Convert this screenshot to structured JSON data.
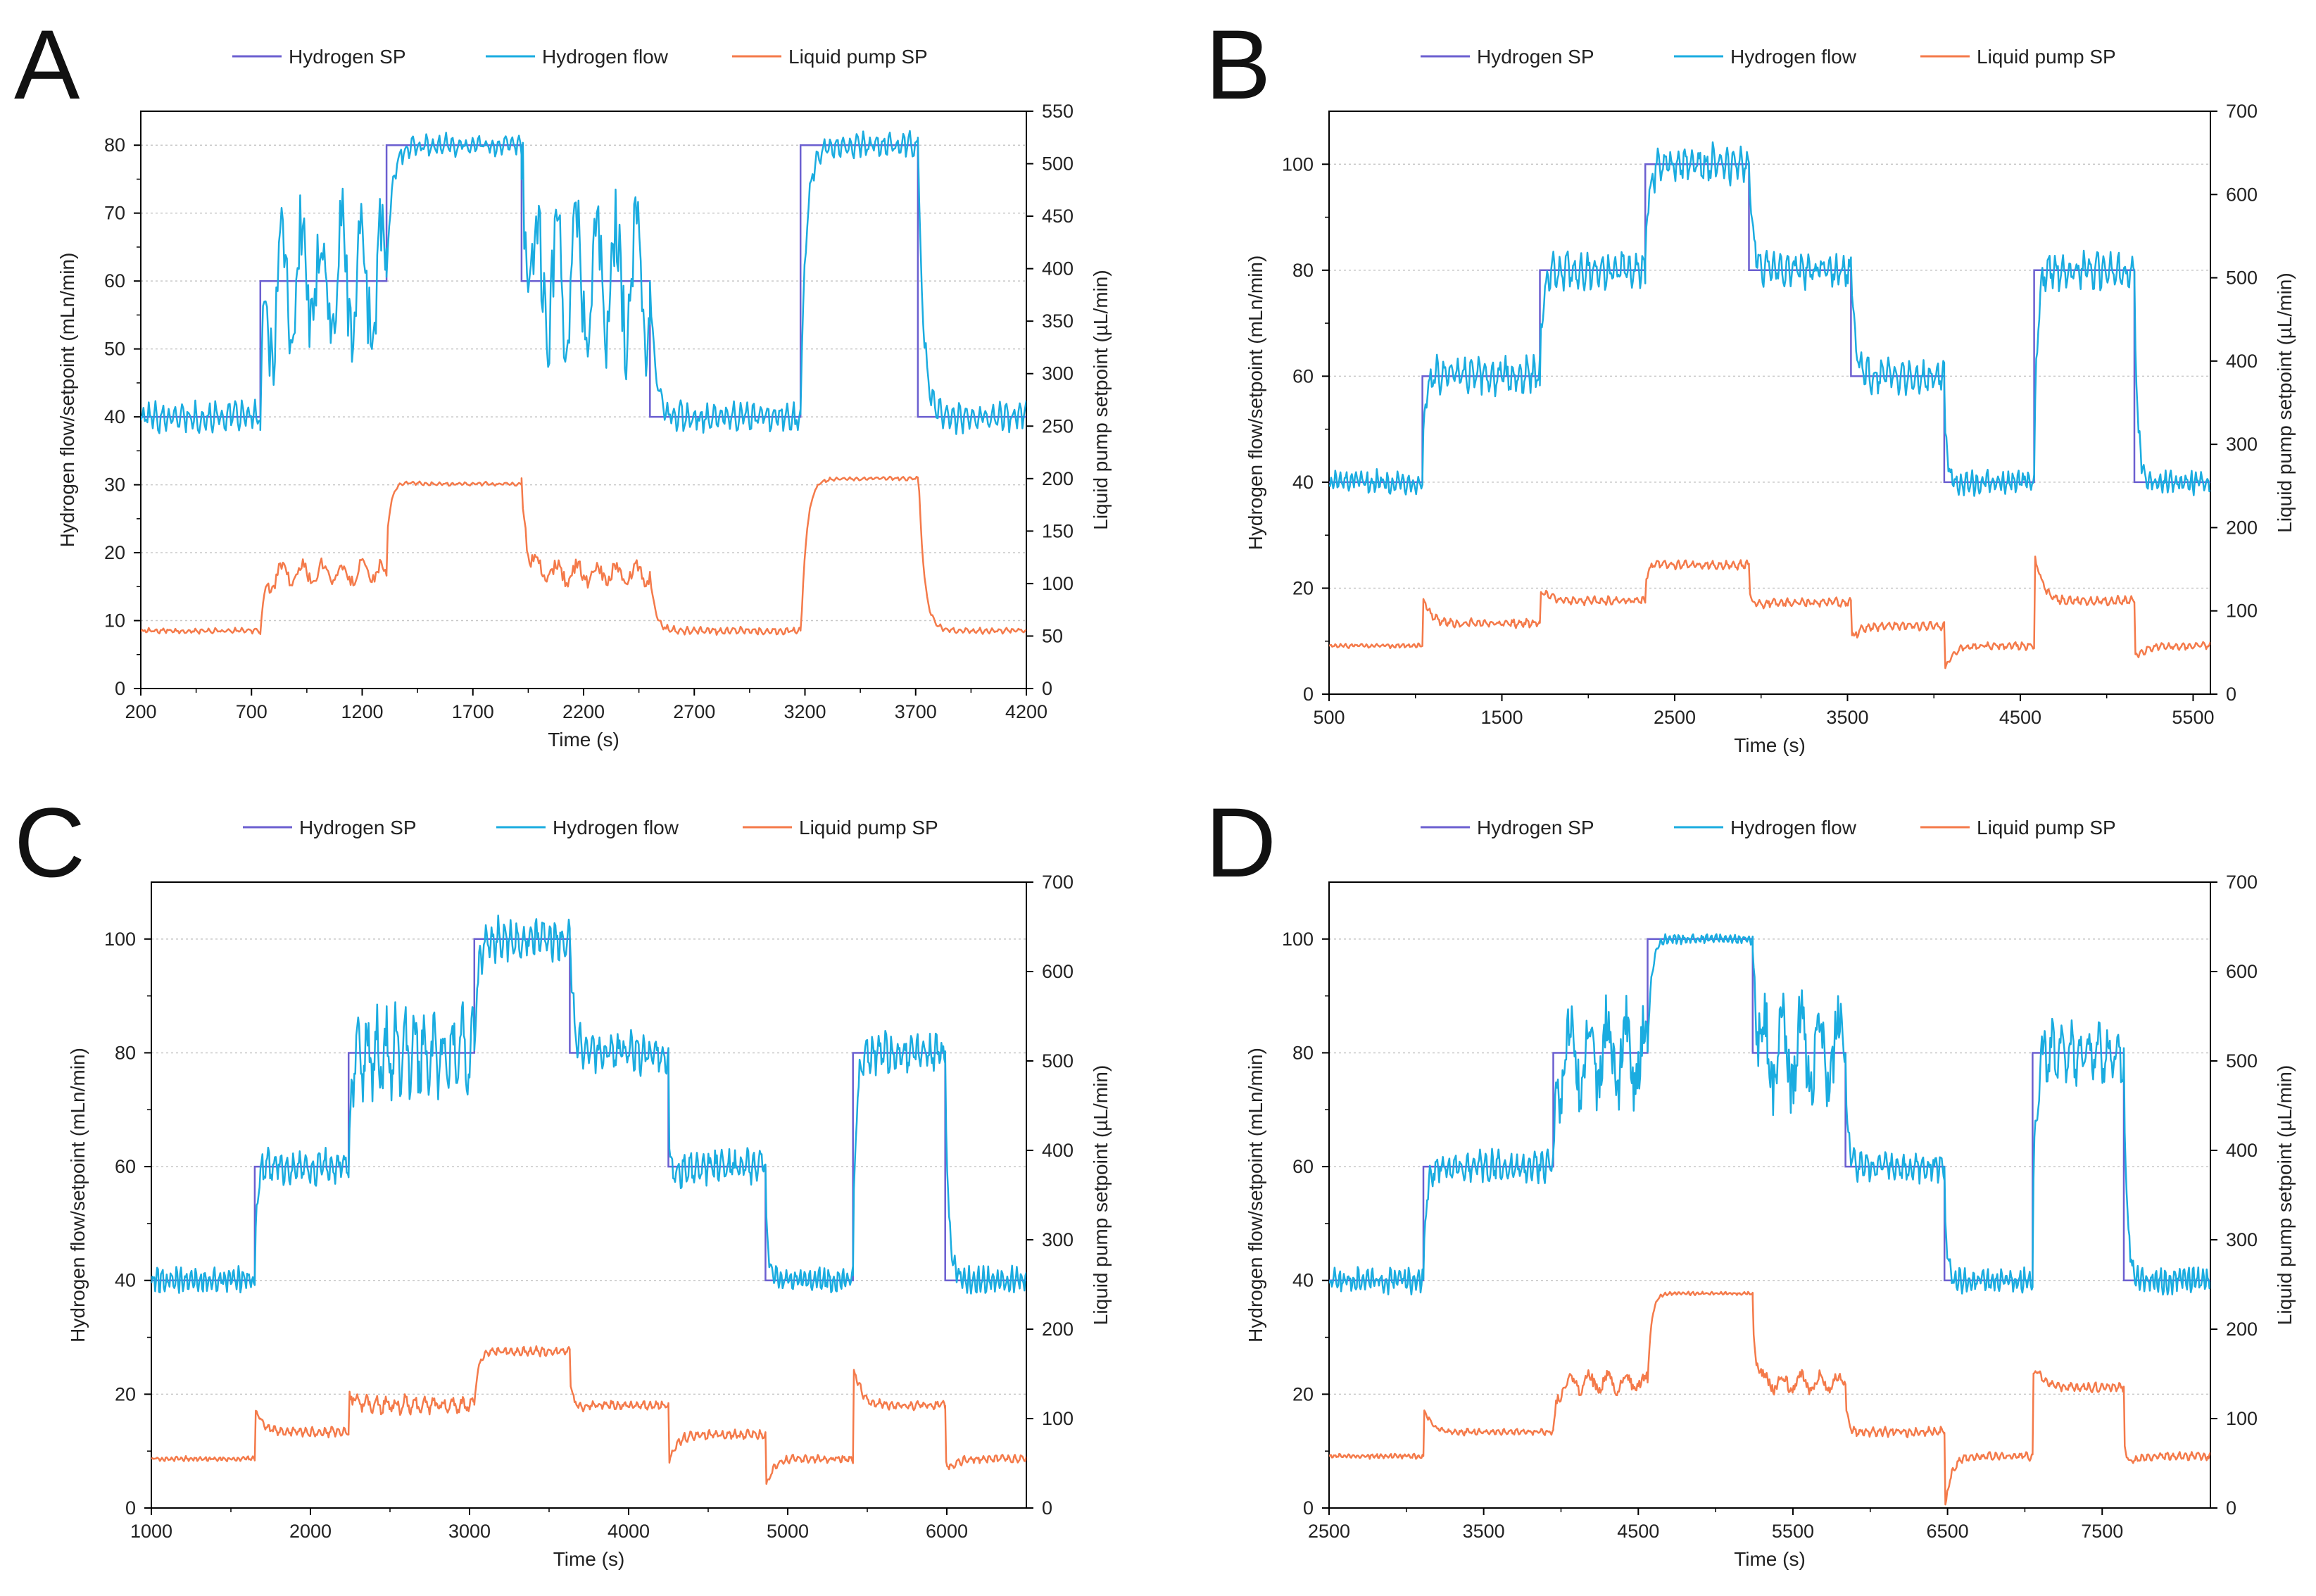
{
  "colors": {
    "hydrogen_sp": "#6B5FD0",
    "hydrogen_flow": "#1AACE0",
    "liquid_pump_sp": "#F47A4A",
    "grid": "#C8C8C8",
    "axis": "#000000"
  },
  "chart_data": [
    {
      "panel": "A",
      "type": "line",
      "legend": [
        "Hydrogen SP",
        "Hydrogen flow",
        "Liquid pump SP"
      ],
      "xlabel": "Time (s)",
      "ylabel": "Hydrogen flow/setpoint (mLn/min)",
      "y2label": "Liquid pump setpoint (µL/min)",
      "xlim": [
        200,
        4200
      ],
      "ylim": [
        0,
        85
      ],
      "y2lim": [
        0,
        550
      ],
      "xticks": [
        "200",
        "700",
        "1200",
        "1700",
        "2200",
        "2700",
        "3200",
        "3700",
        "4200"
      ],
      "yticks": [
        "0",
        "10",
        "20",
        "30",
        "40",
        "50",
        "60",
        "70",
        "80"
      ],
      "y2ticks": [
        "0",
        "50",
        "100",
        "150",
        "200",
        "250",
        "300",
        "350",
        "400",
        "450",
        "500",
        "550"
      ],
      "series": [
        {
          "name": "Hydrogen SP",
          "axis": "left",
          "segments": [
            [
              200,
              40
            ],
            [
              740,
              40
            ],
            [
              740,
              60
            ],
            [
              1310,
              60
            ],
            [
              1310,
              80
            ],
            [
              1920,
              80
            ],
            [
              1920,
              60
            ],
            [
              2500,
              60
            ],
            [
              2500,
              40
            ],
            [
              3180,
              40
            ],
            [
              3180,
              80
            ],
            [
              3710,
              80
            ],
            [
              3710,
              40
            ],
            [
              4200,
              40
            ]
          ]
        },
        {
          "name": "Hydrogen flow",
          "axis": "left",
          "segments": [
            [
              200,
              40,
              2.5,
              3,
              0
            ],
            [
              740,
              60,
              14,
              9,
              1
            ],
            [
              1310,
              80,
              1.8,
              3,
              2
            ],
            [
              1920,
              60,
              14,
              9,
              1
            ],
            [
              2500,
              40,
              2.5,
              3,
              2
            ],
            [
              3180,
              80,
              2,
              3,
              0
            ],
            [
              3710,
              40,
              2.5,
              3,
              2
            ],
            [
              4200,
              40,
              0,
              0,
              0
            ]
          ],
          "overshoot": [
            null,
            null,
            null,
            null,
            null,
            null,
            null
          ]
        },
        {
          "name": "Liquid pump SP",
          "axis": "right",
          "segments": [
            [
              200,
              55,
              3,
              3,
              0
            ],
            [
              740,
              110,
              14,
              9,
              2
            ],
            [
              1310,
              195,
              2,
              3,
              1
            ],
            [
              1920,
              110,
              14,
              9,
              2
            ],
            [
              2500,
              55,
              4,
              3,
              0
            ],
            [
              3180,
              200,
              2,
              3,
              2
            ],
            [
              3710,
              55,
              3,
              3,
              1
            ],
            [
              4200,
              55,
              0,
              0,
              0
            ]
          ],
          "overshoot": [
            null,
            30,
            null,
            null,
            -15,
            25,
            -30
          ]
        }
      ]
    },
    {
      "panel": "B",
      "type": "line",
      "legend": [
        "Hydrogen SP",
        "Hydrogen flow",
        "Liquid pump SP"
      ],
      "xlabel": "Time (s)",
      "ylabel": "Hydrogen flow/setpoint (mLn/min)",
      "y2label": "Liquid pump setpoint (µL/min)",
      "xlim": [
        500,
        5600
      ],
      "ylim": [
        0,
        110
      ],
      "y2lim": [
        0,
        700
      ],
      "xticks": [
        "500",
        "1500",
        "2500",
        "3500",
        "4500",
        "5500"
      ],
      "yticks": [
        "0",
        "20",
        "40",
        "60",
        "80",
        "100"
      ],
      "y2ticks": [
        "0",
        "100",
        "200",
        "300",
        "400",
        "500",
        "600",
        "700"
      ],
      "series": [
        {
          "name": "Hydrogen SP",
          "axis": "left",
          "segments": [
            [
              500,
              40
            ],
            [
              1040,
              40
            ],
            [
              1040,
              60
            ],
            [
              1720,
              60
            ],
            [
              1720,
              80
            ],
            [
              2330,
              80
            ],
            [
              2330,
              100
            ],
            [
              2930,
              100
            ],
            [
              2930,
              80
            ],
            [
              3520,
              80
            ],
            [
              3520,
              60
            ],
            [
              4060,
              60
            ],
            [
              4060,
              40
            ],
            [
              4580,
              40
            ],
            [
              4580,
              80
            ],
            [
              5160,
              80
            ],
            [
              5160,
              40
            ],
            [
              5600,
              40
            ]
          ]
        },
        {
          "name": "Hydrogen flow",
          "axis": "left",
          "segments": [
            [
              500,
              40,
              2.5,
              3,
              0
            ],
            [
              1040,
              60,
              4,
              4,
              1
            ],
            [
              1720,
              80,
              4,
              4,
              2
            ],
            [
              2330,
              100,
              4,
              4,
              1
            ],
            [
              2930,
              80,
              4,
              4,
              0
            ],
            [
              3520,
              60,
              3.5,
              4,
              2
            ],
            [
              4060,
              40,
              2.5,
              3,
              1
            ],
            [
              4580,
              80,
              4,
              4,
              0
            ],
            [
              5160,
              40,
              2.5,
              3,
              2
            ],
            [
              5600,
              40,
              0,
              0,
              0
            ]
          ],
          "overshoot": [
            7,
            5,
            3,
            null,
            null,
            -7,
            9,
            -6
          ]
        },
        {
          "name": "Liquid pump SP",
          "axis": "right",
          "segments": [
            [
              500,
              58,
              3,
              3,
              0
            ],
            [
              1040,
              85,
              6,
              4,
              1
            ],
            [
              1720,
              112,
              6,
              4,
              2
            ],
            [
              2330,
              155,
              6,
              4,
              0
            ],
            [
              2930,
              110,
              6,
              4,
              1
            ],
            [
              3520,
              82,
              6,
              4,
              2
            ],
            [
              4060,
              58,
              5,
              4,
              0
            ],
            [
              4580,
              112,
              6,
              4,
              1
            ],
            [
              5160,
              58,
              5,
              4,
              2
            ],
            [
              5600,
              58,
              0,
              0,
              0
            ]
          ],
          "overshoot": [
            60,
            40,
            20,
            -30,
            -40,
            -55,
            110,
            -60
          ]
        }
      ]
    },
    {
      "panel": "C",
      "type": "line",
      "legend": [
        "Hydrogen SP",
        "Hydrogen flow",
        "Liquid pump SP"
      ],
      "xlabel": "Time (s)",
      "ylabel": "Hydrogen flow/setpoint (mLn/min)",
      "y2label": "Liquid pump setpoint (µL/min)",
      "xlim": [
        1000,
        6500
      ],
      "ylim": [
        0,
        110
      ],
      "y2lim": [
        0,
        700
      ],
      "xticks": [
        "1000",
        "2000",
        "3000",
        "4000",
        "5000",
        "6000"
      ],
      "yticks": [
        "0",
        "20",
        "40",
        "60",
        "80",
        "100"
      ],
      "y2ticks": [
        "0",
        "100",
        "200",
        "300",
        "400",
        "500",
        "600",
        "700"
      ],
      "series": [
        {
          "name": "Hydrogen SP",
          "axis": "left",
          "segments": [
            [
              1000,
              40
            ],
            [
              1650,
              40
            ],
            [
              1650,
              60
            ],
            [
              2240,
              60
            ],
            [
              2240,
              80
            ],
            [
              3030,
              80
            ],
            [
              3030,
              100
            ],
            [
              3630,
              100
            ],
            [
              3630,
              80
            ],
            [
              4250,
              80
            ],
            [
              4250,
              60
            ],
            [
              4860,
              60
            ],
            [
              4860,
              40
            ],
            [
              5410,
              40
            ],
            [
              5410,
              80
            ],
            [
              5990,
              80
            ],
            [
              5990,
              40
            ],
            [
              6500,
              40
            ]
          ]
        },
        {
          "name": "Hydrogen flow",
          "axis": "left",
          "segments": [
            [
              1000,
              40,
              2.5,
              3,
              0
            ],
            [
              1650,
              60,
              3.5,
              4,
              1
            ],
            [
              2240,
              80,
              9,
              6,
              2
            ],
            [
              3030,
              100,
              4,
              4,
              1
            ],
            [
              3630,
              80,
              4,
              4,
              0
            ],
            [
              4250,
              60,
              3.5,
              4,
              2
            ],
            [
              4860,
              40,
              2.5,
              3,
              1
            ],
            [
              5410,
              80,
              4,
              4,
              0
            ],
            [
              5990,
              40,
              2.5,
              3,
              2
            ],
            [
              6500,
              40,
              0,
              0,
              0
            ]
          ],
          "overshoot": [
            7,
            5,
            null,
            null,
            -15,
            -6,
            8,
            -6
          ]
        },
        {
          "name": "Liquid pump SP",
          "axis": "right",
          "segments": [
            [
              1000,
              55,
              3,
              3,
              0
            ],
            [
              1650,
              85,
              6,
              4,
              1
            ],
            [
              2240,
              115,
              12,
              6,
              2
            ],
            [
              3030,
              175,
              6,
              4,
              0
            ],
            [
              3630,
              115,
              6,
              4,
              1
            ],
            [
              4250,
              82,
              6,
              4,
              2
            ],
            [
              4860,
              55,
              5,
              4,
              0
            ],
            [
              5410,
              115,
              6,
              4,
              1
            ],
            [
              5990,
              55,
              5,
              4,
              2
            ],
            [
              6500,
              55,
              0,
              0,
              0
            ]
          ],
          "overshoot": [
            55,
            40,
            null,
            -30,
            -65,
            -60,
            100,
            -60
          ]
        }
      ]
    },
    {
      "panel": "D",
      "type": "line",
      "legend": [
        "Hydrogen SP",
        "Hydrogen flow",
        "Liquid pump SP"
      ],
      "xlabel": "Time (s)",
      "ylabel": "Hydrogen flow/setpoint (mLn/min)",
      "y2label": "Liquid pump setpoint (µL/min)",
      "xlim": [
        2500,
        8200
      ],
      "ylim": [
        0,
        110
      ],
      "y2lim": [
        0,
        700
      ],
      "xticks": [
        "2500",
        "3500",
        "4500",
        "5500",
        "6500",
        "7500"
      ],
      "yticks": [
        "0",
        "20",
        "40",
        "60",
        "80",
        "100"
      ],
      "y2ticks": [
        "0",
        "100",
        "200",
        "300",
        "400",
        "500",
        "600",
        "700"
      ],
      "series": [
        {
          "name": "Hydrogen SP",
          "axis": "left",
          "segments": [
            [
              2500,
              40
            ],
            [
              3110,
              40
            ],
            [
              3110,
              60
            ],
            [
              3950,
              60
            ],
            [
              3950,
              80
            ],
            [
              4560,
              80
            ],
            [
              4560,
              100
            ],
            [
              5240,
              100
            ],
            [
              5240,
              80
            ],
            [
              5840,
              80
            ],
            [
              5840,
              60
            ],
            [
              6480,
              60
            ],
            [
              6480,
              40
            ],
            [
              7050,
              40
            ],
            [
              7050,
              80
            ],
            [
              7640,
              80
            ],
            [
              7640,
              40
            ],
            [
              8200,
              40
            ]
          ]
        },
        {
          "name": "Hydrogen flow",
          "axis": "left",
          "segments": [
            [
              2500,
              40,
              2.5,
              3,
              0
            ],
            [
              3110,
              60,
              3,
              4,
              1
            ],
            [
              3950,
              80,
              11,
              12,
              2
            ],
            [
              4560,
              100,
              1,
              3,
              1
            ],
            [
              5240,
              80,
              11,
              12,
              0
            ],
            [
              5840,
              60,
              3,
              4,
              2
            ],
            [
              6480,
              40,
              2.5,
              3,
              1
            ],
            [
              7050,
              80,
              6,
              6,
              0
            ],
            [
              7640,
              40,
              2.5,
              3,
              2
            ],
            [
              8200,
              40,
              0,
              0,
              0
            ]
          ],
          "overshoot": [
            3,
            null,
            null,
            null,
            -5,
            -7,
            9,
            -6
          ]
        },
        {
          "name": "Liquid pump SP",
          "axis": "right",
          "segments": [
            [
              2500,
              58,
              3,
              3,
              0
            ],
            [
              3110,
              85,
              4,
              4,
              1
            ],
            [
              3950,
              140,
              14,
              12,
              2
            ],
            [
              4560,
              240,
              2,
              3,
              0
            ],
            [
              5240,
              140,
              14,
              12,
              1
            ],
            [
              5840,
              85,
              6,
              4,
              2
            ],
            [
              6480,
              58,
              5,
              4,
              0
            ],
            [
              7050,
              135,
              6,
              4,
              1
            ],
            [
              7640,
              58,
              5,
              4,
              2
            ],
            [
              8200,
              58,
              0,
              0,
              0
            ]
          ],
          "overshoot": [
            55,
            null,
            null,
            -20,
            -20,
            -90,
            90,
            -60
          ]
        }
      ]
    }
  ]
}
